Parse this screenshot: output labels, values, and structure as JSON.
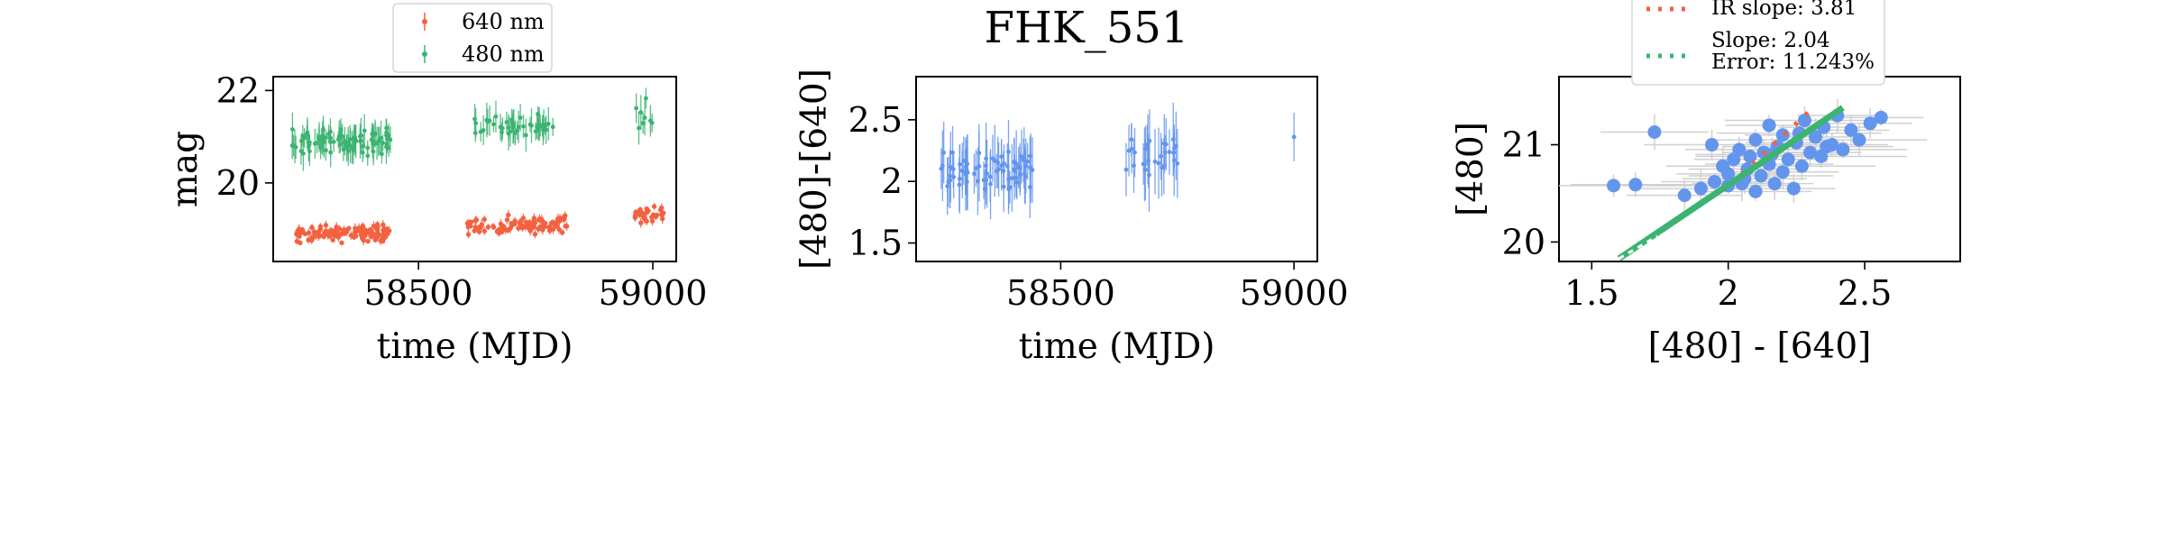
{
  "figure": {
    "title": "FHK_551"
  },
  "colors": {
    "red": "#f4613f",
    "green": "#3cb371",
    "blue": "#6495ed",
    "errorbar_gray": "#d0d0d0",
    "axis": "#000000"
  },
  "chart_data": [
    {
      "type": "scatter",
      "panel": "light-curve",
      "title": "",
      "xlabel": "time (MJD)",
      "ylabel": "mag",
      "xlim": [
        58190,
        59050
      ],
      "ylim": [
        22.3,
        18.3
      ],
      "y_inverted": true,
      "xticks": [
        58500,
        59000
      ],
      "yticks": [
        20,
        22
      ],
      "legend": {
        "placement": "top-center"
      },
      "series": [
        {
          "name": "640 nm",
          "color": "red",
          "seasons": [
            {
              "x_range": [
                58240,
                58440
              ],
              "y_mean": 18.9,
              "y_spread": 0.5,
              "count": 120
            },
            {
              "x_range": [
                58600,
                58820
              ],
              "y_mean": 19.1,
              "y_spread": 0.5,
              "count": 95
            },
            {
              "x_range": [
                58960,
                59030
              ],
              "y_mean": 19.3,
              "y_spread": 0.5,
              "count": 30
            }
          ]
        },
        {
          "name": "480 nm",
          "color": "green",
          "seasons": [
            {
              "x_range": [
                58230,
                58440
              ],
              "y_mean": 20.9,
              "y_spread": 0.8,
              "count": 95
            },
            {
              "x_range": [
                58620,
                58800
              ],
              "y_mean": 21.2,
              "y_spread": 0.8,
              "count": 45
            },
            {
              "x_range": [
                58960,
                59010
              ],
              "y_mean": 21.4,
              "y_spread": 1.2,
              "count": 8
            }
          ]
        }
      ]
    },
    {
      "type": "scatter",
      "panel": "color-curve",
      "title": "FHK_551",
      "xlabel": "time (MJD)",
      "ylabel": "[480]-[640]",
      "xlim": [
        58190,
        59050
      ],
      "ylim": [
        2.85,
        1.35
      ],
      "y_inverted": true,
      "xticks": [
        58500,
        59000
      ],
      "yticks": [
        1.5,
        2.0,
        2.5
      ],
      "series": [
        {
          "color": "blue",
          "seasons": [
            {
              "x_range": [
                58240,
                58440
              ],
              "y_mean": 2.1,
              "y_spread": 0.45,
              "count": 75
            },
            {
              "x_range": [
                58640,
                58760
              ],
              "y_mean": 2.2,
              "y_spread": 0.5,
              "count": 30
            },
            {
              "x_range": [
                58995,
                59005
              ],
              "y_mean": 2.35,
              "y_spread": 0.05,
              "count": 1
            }
          ]
        }
      ]
    },
    {
      "type": "scatter",
      "panel": "color-magnitude",
      "title": "",
      "xlabel": "[480] - [640]",
      "ylabel": "[480]",
      "xlim": [
        1.38,
        2.85
      ],
      "ylim": [
        21.7,
        19.8
      ],
      "y_inverted": true,
      "xticks": [
        1.5,
        2.0,
        2.5
      ],
      "yticks": [
        20,
        21
      ],
      "points": [
        [
          1.58,
          20.58
        ],
        [
          1.66,
          20.59
        ],
        [
          1.73,
          21.13
        ],
        [
          1.84,
          20.48
        ],
        [
          1.9,
          20.55
        ],
        [
          1.95,
          20.62
        ],
        [
          1.98,
          20.78
        ],
        [
          2.0,
          20.7
        ],
        [
          2.02,
          20.85
        ],
        [
          2.04,
          20.95
        ],
        [
          2.05,
          20.6
        ],
        [
          2.07,
          20.75
        ],
        [
          2.08,
          20.88
        ],
        [
          2.1,
          20.52
        ],
        [
          2.1,
          21.05
        ],
        [
          2.12,
          20.68
        ],
        [
          2.13,
          20.92
        ],
        [
          2.15,
          20.8
        ],
        [
          2.15,
          21.2
        ],
        [
          2.17,
          20.6
        ],
        [
          2.18,
          20.98
        ],
        [
          2.2,
          20.72
        ],
        [
          2.2,
          21.1
        ],
        [
          2.22,
          20.85
        ],
        [
          2.24,
          20.55
        ],
        [
          2.25,
          21.02
        ],
        [
          2.27,
          20.78
        ],
        [
          2.28,
          21.25
        ],
        [
          2.3,
          20.92
        ],
        [
          2.32,
          21.08
        ],
        [
          2.34,
          20.88
        ],
        [
          2.35,
          21.18
        ],
        [
          2.38,
          21.0
        ],
        [
          2.4,
          21.3
        ],
        [
          2.42,
          20.95
        ],
        [
          2.45,
          21.15
        ],
        [
          2.48,
          21.05
        ],
        [
          2.52,
          21.22
        ],
        [
          2.56,
          21.28
        ],
        [
          1.94,
          21.0
        ],
        [
          2.06,
          20.65
        ],
        [
          2.16,
          20.9
        ],
        [
          2.26,
          21.12
        ],
        [
          2.36,
          20.98
        ],
        [
          2.0,
          20.58
        ]
      ],
      "fit_lines": [
        {
          "label": "IR slope: 3.81",
          "color": "red",
          "style": "dotted",
          "x": [
            2.05,
            2.3
          ],
          "y": [
            20.7,
            21.35
          ]
        },
        {
          "label": "Slope: 2.04\nError: 11.243%",
          "color": "green",
          "style": "solid",
          "x": [
            1.6,
            2.42
          ],
          "y": [
            19.83,
            21.38
          ]
        }
      ],
      "legend": {
        "placement": "top",
        "entries": [
          {
            "lines": [
              "IR slope: 3.81"
            ],
            "color": "red"
          },
          {
            "lines": [
              "Slope: 2.04",
              "Error: 11.243%"
            ],
            "color": "green"
          }
        ]
      }
    }
  ]
}
